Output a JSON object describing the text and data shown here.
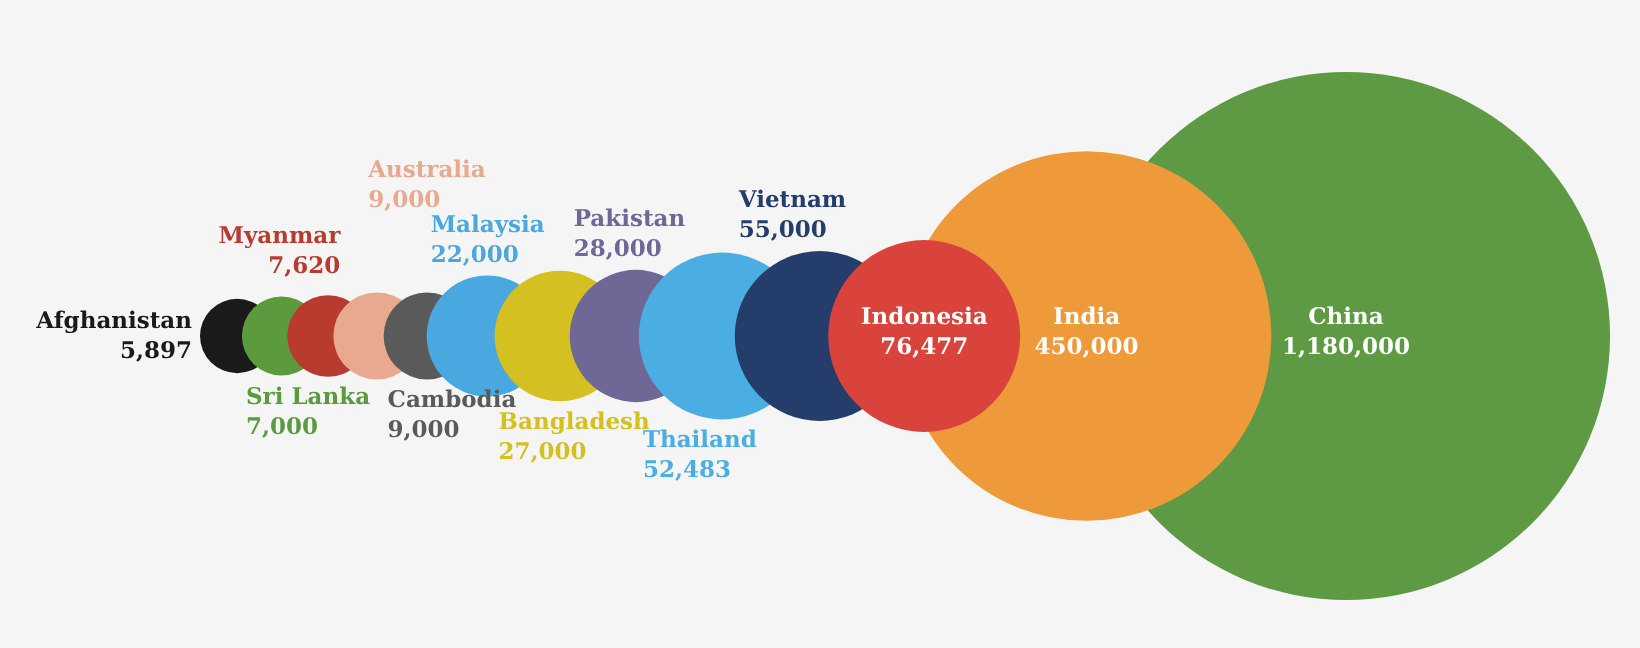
{
  "chart_data": {
    "type": "other",
    "categories": [
      "Afghanistan",
      "Sri Lanka",
      "Myanmar",
      "Australia",
      "Cambodia",
      "Malaysia",
      "Bangladesh",
      "Pakistan",
      "Thailand",
      "Vietnam",
      "Indonesia",
      "India",
      "China"
    ],
    "values": [
      5897,
      7000,
      7620,
      9000,
      9000,
      22000,
      27000,
      28000,
      52483,
      55000,
      76477,
      450000,
      1180000
    ],
    "value_labels": [
      "5,897",
      "7,000",
      "7,620",
      "9,000",
      "9,000",
      "22,000",
      "27,000",
      "28,000",
      "52,483",
      "55,000",
      "76,477",
      "450,000",
      "1,180,000"
    ],
    "colors": [
      "#1a1a1a",
      "#5c9a3e",
      "#b93a2e",
      "#e8a98f",
      "#5a5a5a",
      "#4aa8e0",
      "#d4c020",
      "#6f6795",
      "#4aaee2",
      "#243d6b",
      "#d9433b",
      "#ef9a3a",
      "#5e9a44"
    ]
  }
}
